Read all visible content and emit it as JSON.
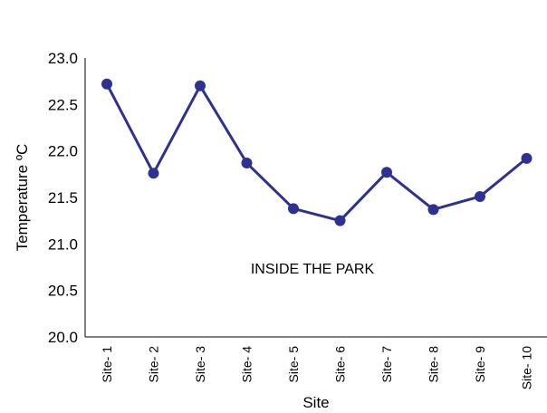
{
  "chart_data": {
    "type": "line",
    "categories": [
      "Site- 1",
      "Site- 2",
      "Site- 3",
      "Site- 4",
      "Site- 5",
      "Site- 6",
      "Site- 7",
      "Site- 8",
      "Site- 9",
      "Site- 10"
    ],
    "series": [
      {
        "values": [
          22.72,
          21.76,
          22.7,
          21.87,
          21.38,
          21.25,
          21.77,
          21.37,
          21.51,
          21.92
        ]
      }
    ],
    "yticks": [
      "20.0",
      "20.5",
      "21.0",
      "21.5",
      "22.0",
      "22.5",
      "23.0"
    ],
    "ylim": [
      20.0,
      23.0
    ],
    "xlabel": "Site",
    "ylabel": "Temperature ºC",
    "annotation": "INSIDE THE PARK",
    "line_color": "#2e3192",
    "grid": false,
    "legend": "none"
  }
}
